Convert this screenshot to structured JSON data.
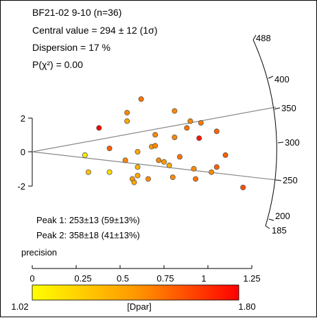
{
  "stats": {
    "title": "BF21-02 9-10 (n=36)",
    "central": "Central value = 294 ± 12  (1σ)",
    "dispersion": "Dispersion = 17 %",
    "pchi": "P(χ²) = 0.00"
  },
  "peaks": {
    "peak1": "Peak 1: 253±13 (59±13%)",
    "peak2": "Peak 2: 358±18 (41±13%)"
  },
  "chart_data": {
    "type": "radial",
    "y_ticks": [
      "2",
      "0",
      "-2"
    ],
    "x_axis_label": "precision",
    "x_ticks": [
      "0",
      "0.25",
      "0.5",
      "0.75",
      "1",
      "1.25"
    ],
    "radial_ticks": [
      "488",
      "400",
      "350",
      "300",
      "250",
      "200",
      "185"
    ],
    "color_bar": {
      "label": "[Dpar]",
      "min_label": "1.02",
      "max_label": "1.80",
      "colors": [
        "#ffff00",
        "#ff9800",
        "#ff0000"
      ]
    },
    "peak_lines": [
      358,
      253
    ],
    "points": [
      {
        "x": 0.62,
        "y": 3.1,
        "dpar": 1.5
      },
      {
        "x": 0.54,
        "y": 2.3,
        "dpar": 1.45
      },
      {
        "x": 0.81,
        "y": 2.4,
        "dpar": 1.45
      },
      {
        "x": 0.54,
        "y": 1.8,
        "dpar": 1.35
      },
      {
        "x": 0.38,
        "y": 1.4,
        "dpar": 1.8
      },
      {
        "x": 0.7,
        "y": 1.0,
        "dpar": 1.45
      },
      {
        "x": 0.9,
        "y": 1.8,
        "dpar": 1.45
      },
      {
        "x": 0.96,
        "y": 1.7,
        "dpar": 1.5
      },
      {
        "x": 0.88,
        "y": 1.4,
        "dpar": 1.5
      },
      {
        "x": 1.05,
        "y": 1.2,
        "dpar": 1.55
      },
      {
        "x": 0.95,
        "y": 0.8,
        "dpar": 1.75
      },
      {
        "x": 0.81,
        "y": 0.85,
        "dpar": 1.45
      },
      {
        "x": 0.44,
        "y": 0.2,
        "dpar": 1.55
      },
      {
        "x": 0.68,
        "y": 0.3,
        "dpar": 1.4
      },
      {
        "x": 0.7,
        "y": 0.35,
        "dpar": 1.45
      },
      {
        "x": 0.6,
        "y": 0.0,
        "dpar": 1.35
      },
      {
        "x": 0.3,
        "y": -0.2,
        "dpar": 1.1
      },
      {
        "x": 0.53,
        "y": -0.5,
        "dpar": 1.45
      },
      {
        "x": 0.72,
        "y": -0.5,
        "dpar": 1.45
      },
      {
        "x": 0.75,
        "y": -0.6,
        "dpar": 1.4
      },
      {
        "x": 0.78,
        "y": -0.8,
        "dpar": 1.35
      },
      {
        "x": 0.84,
        "y": -0.3,
        "dpar": 1.5
      },
      {
        "x": 1.1,
        "y": -0.2,
        "dpar": 1.55
      },
      {
        "x": 0.6,
        "y": -0.9,
        "dpar": 1.3
      },
      {
        "x": 0.92,
        "y": -1.0,
        "dpar": 1.45
      },
      {
        "x": 1.02,
        "y": -1.2,
        "dpar": 1.45
      },
      {
        "x": 1.05,
        "y": -0.9,
        "dpar": 1.55
      },
      {
        "x": 0.32,
        "y": -1.2,
        "dpar": 1.25
      },
      {
        "x": 0.44,
        "y": -1.2,
        "dpar": 1.15
      },
      {
        "x": 0.6,
        "y": -1.4,
        "dpar": 1.35
      },
      {
        "x": 0.57,
        "y": -1.6,
        "dpar": 1.4
      },
      {
        "x": 0.66,
        "y": -1.6,
        "dpar": 1.45
      },
      {
        "x": 0.8,
        "y": -1.5,
        "dpar": 1.45
      },
      {
        "x": 0.93,
        "y": -1.6,
        "dpar": 1.5
      },
      {
        "x": 0.58,
        "y": -1.8,
        "dpar": 1.35
      },
      {
        "x": 1.2,
        "y": -2.1,
        "dpar": 1.6
      }
    ]
  }
}
